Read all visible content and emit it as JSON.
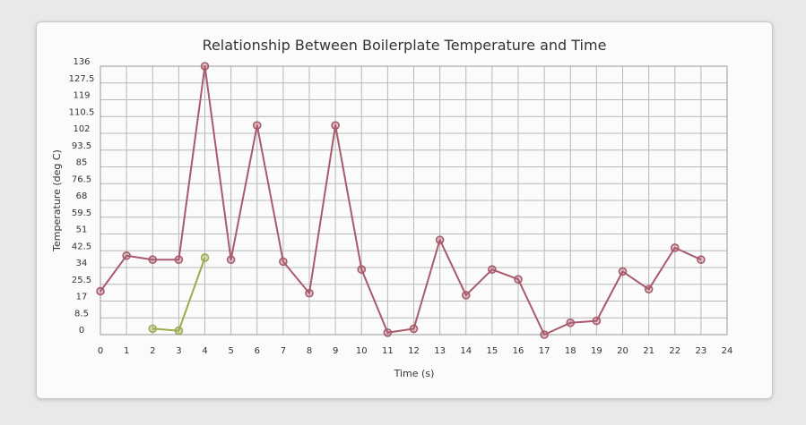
{
  "chart_data": {
    "type": "line",
    "title": "Relationship Between Boilerplate Temperature and Time",
    "xlabel": "Time (s)",
    "ylabel": "Temperature (deg C)",
    "xlim": [
      0,
      24
    ],
    "ylim": [
      0,
      136
    ],
    "x_ticks": [
      "0",
      "1",
      "2",
      "3",
      "4",
      "5",
      "6",
      "7",
      "8",
      "9",
      "10",
      "11",
      "12",
      "13",
      "14",
      "15",
      "16",
      "17",
      "18",
      "19",
      "20",
      "21",
      "22",
      "23",
      "24"
    ],
    "y_ticks": [
      "0",
      "8.5",
      "17",
      "25.5",
      "34",
      "42.5",
      "51",
      "59.5",
      "68",
      "76.5",
      "85",
      "93.5",
      "102",
      "110.5",
      "119",
      "127.5",
      "136"
    ],
    "grid": true,
    "series": [
      {
        "color": "#a85b6c",
        "x": [
          0,
          1,
          2,
          3,
          4,
          5,
          6,
          7,
          8,
          9,
          10,
          11,
          12,
          13,
          14,
          15,
          16,
          17,
          18,
          19,
          20,
          21,
          22,
          23
        ],
        "values": [
          22,
          40,
          38,
          38,
          136,
          38,
          106,
          37,
          21,
          106,
          33,
          1,
          3,
          48,
          20,
          33,
          28,
          0,
          6,
          7,
          32,
          23,
          44,
          38
        ]
      },
      {
        "color": "#98ad4e",
        "x": [
          2,
          3,
          4
        ],
        "values": [
          3,
          2,
          39
        ]
      }
    ]
  }
}
